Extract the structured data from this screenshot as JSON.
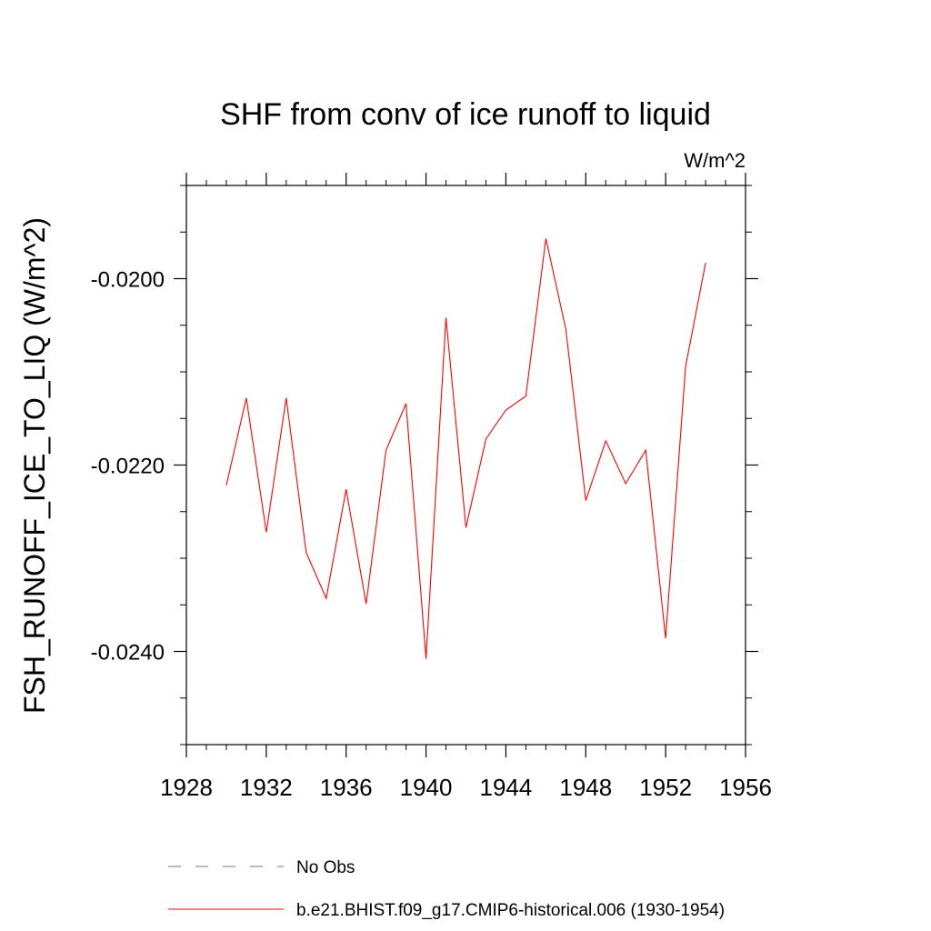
{
  "chart_data": {
    "type": "line",
    "title": "SHF from conv of ice runoff to liquid",
    "units_label": "W/m^2",
    "ylabel": "FSH_RUNOFF_ICE_TO_LIQ  (W/m^2)",
    "xlabel": "",
    "xlim": [
      1928,
      1956
    ],
    "ylim": [
      -0.025,
      -0.019
    ],
    "x_ticks": [
      "1928",
      "1932",
      "1936",
      "1940",
      "1944",
      "1948",
      "1952",
      "1956"
    ],
    "y_ticks": [
      "-0.0200",
      "-0.0220",
      "-0.0240"
    ],
    "grid": false,
    "legend_position": "bottom",
    "series": [
      {
        "name": "No Obs",
        "color": "#7b6ea8",
        "dash": "dashed",
        "x": [],
        "values": []
      },
      {
        "name": "b.e21.BHIST.f09_g17.CMIP6-historical.006 (1930-1954)",
        "color": "#ff0000",
        "dash": "solid",
        "x": [
          1930,
          1931,
          1932,
          1933,
          1934,
          1935,
          1936,
          1937,
          1938,
          1939,
          1940,
          1941,
          1942,
          1943,
          1944,
          1945,
          1946,
          1947,
          1948,
          1949,
          1950,
          1951,
          1952,
          1953,
          1954
        ],
        "values": [
          -0.02222,
          -0.02128,
          -0.02272,
          -0.02128,
          -0.02294,
          -0.02343,
          -0.02226,
          -0.02349,
          -0.02184,
          -0.02134,
          -0.02408,
          -0.02042,
          -0.02267,
          -0.02172,
          -0.02141,
          -0.02126,
          -0.01957,
          -0.02054,
          -0.02238,
          -0.02174,
          -0.0222,
          -0.02184,
          -0.02386,
          -0.02094,
          -0.01983
        ]
      }
    ]
  }
}
